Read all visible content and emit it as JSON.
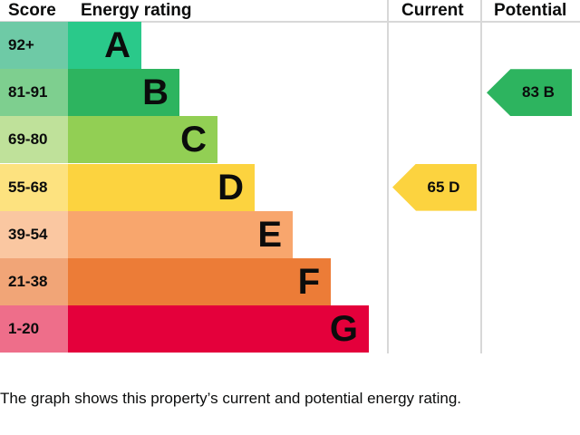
{
  "chart_data": {
    "type": "table",
    "headers": {
      "score": "Score",
      "rating": "Energy rating",
      "current": "Current",
      "potential": "Potential"
    },
    "bands": [
      {
        "score": "92+",
        "letter": "A",
        "color": "#2ac98a",
        "light": "#6ecaa6"
      },
      {
        "score": "81-91",
        "letter": "B",
        "color": "#2db45f",
        "light": "#7ecf8f"
      },
      {
        "score": "69-80",
        "letter": "C",
        "color": "#92cf54",
        "light": "#bfe19a"
      },
      {
        "score": "55-68",
        "letter": "D",
        "color": "#fcd33f",
        "light": "#fde27f"
      },
      {
        "score": "39-54",
        "letter": "E",
        "color": "#f8a66d",
        "light": "#fac7a1"
      },
      {
        "score": "21-38",
        "letter": "F",
        "color": "#ec7c37",
        "light": "#f1a577"
      },
      {
        "score": "1-20",
        "letter": "G",
        "color": "#e4003b",
        "light": "#ee6e8a"
      }
    ],
    "current": {
      "value": 65,
      "letter": "D",
      "label": "65  D",
      "band_index": 3,
      "color": "#fcd33f"
    },
    "potential": {
      "value": 83,
      "letter": "B",
      "label": "83  B",
      "band_index": 1,
      "color": "#2db45f"
    }
  },
  "footer": "The graph shows this property’s current and potential energy rating."
}
